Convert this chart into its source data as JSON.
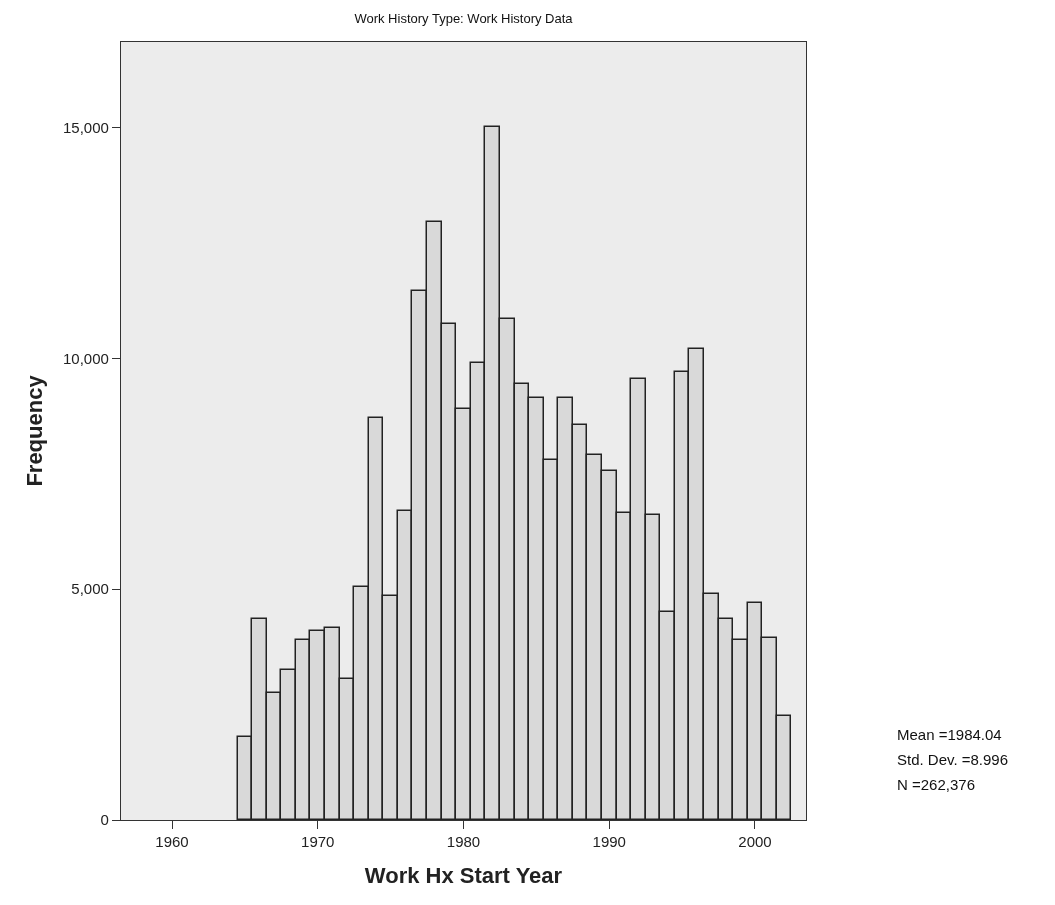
{
  "chart_data": {
    "type": "histogram",
    "title": "Work History Type: Work History Data",
    "xlabel": "Work Hx Start Year",
    "ylabel": "Frequency",
    "bins": [
      1964.5,
      1965.5,
      1966.5,
      1967.5,
      1968.5,
      1969.5,
      1970.5,
      1971.5,
      1972.5,
      1973.5,
      1974.5,
      1975.5,
      1976.5,
      1977.5,
      1978.5,
      1979.5,
      1980.5,
      1981.5,
      1982.5,
      1983.5,
      1984.5,
      1985.5,
      1986.5,
      1987.5,
      1988.5,
      1989.5,
      1990.5,
      1991.5,
      1992.5,
      1993.5,
      1994.5,
      1995.5,
      1996.5,
      1997.5,
      1998.5,
      1999.5,
      2000.5,
      2001.5,
      2002.5
    ],
    "values": [
      1800,
      4350,
      2750,
      3250,
      3900,
      4100,
      4150,
      3050,
      5050,
      8700,
      4850,
      6700,
      11450,
      12950,
      10750,
      8900,
      9900,
      15000,
      10850,
      9450,
      9150,
      7800,
      9150,
      8550,
      7900,
      7550,
      6650,
      9550,
      6600,
      4500,
      9700,
      10200,
      4900,
      4350,
      3900,
      4700,
      3950,
      2250
    ],
    "color": "#d9d9d9",
    "xlim": [
      1956.5,
      2003.5
    ],
    "xticks": [
      1960,
      1970,
      1980,
      1990,
      2000
    ],
    "ylim": [
      0,
      16850
    ],
    "yticks": [
      {
        "value": 0,
        "label": "0"
      },
      {
        "value": 5000,
        "label": "5,000"
      },
      {
        "value": 10000,
        "label": "10,000"
      },
      {
        "value": 15000,
        "label": "15,000"
      }
    ],
    "grid": false,
    "legend": false,
    "annotations": [
      "Mean =1984.04",
      "Std. Dev. =8.996",
      "N =262,376"
    ]
  }
}
